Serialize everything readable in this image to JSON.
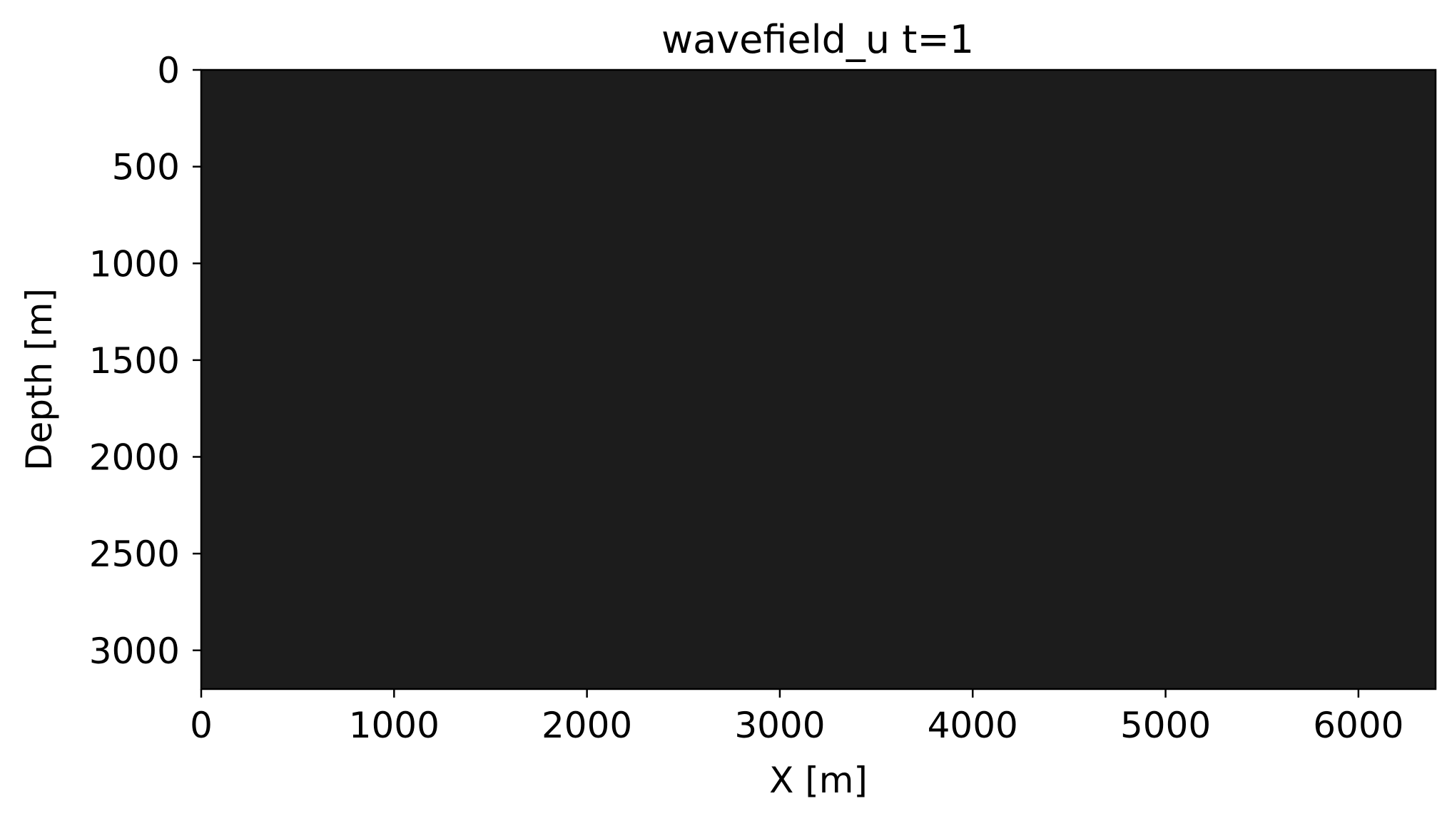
{
  "chart_data": {
    "type": "heatmap",
    "title": "wavefield_u t=1",
    "xlabel": "X [m]",
    "ylabel": "Depth [m]",
    "xlim": [
      0,
      6400
    ],
    "ylim": [
      3200,
      0
    ],
    "y_axis_inverted": true,
    "x_ticks": [
      0,
      1000,
      2000,
      3000,
      4000,
      5000,
      6000
    ],
    "y_ticks": [
      0,
      500,
      1000,
      1500,
      2000,
      2500,
      3000
    ],
    "field_color": "#1c1c1c",
    "grid": false,
    "legend": "none"
  }
}
